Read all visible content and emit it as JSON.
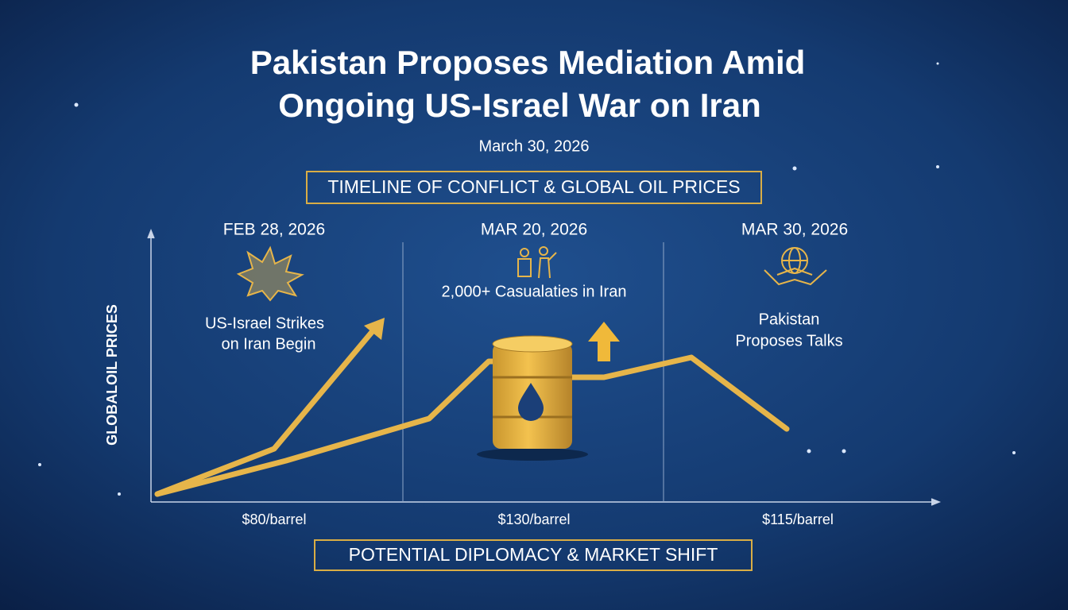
{
  "header": {
    "title_lines": [
      "Pakistan Proposes Mediation Amid",
      "Ongoing US-Israel War on Iran"
    ],
    "date": "March 30, 2026"
  },
  "banner": "TIMELINE OF CONFLICT & GLOBAL OIL PRICES",
  "axis_label": "GLOBALOIL PRICES",
  "events": [
    {
      "date": "FEB 28, 2026",
      "label_lines": [
        "US-Israel Strikes",
        "on Iran Begin"
      ],
      "price": "$80/barrel"
    },
    {
      "date": "MAR 20, 2026",
      "label_lines": [
        "2,000+ Casualaties in Iran"
      ],
      "price": "$130/barrel"
    },
    {
      "date": "MAR 30, 2026",
      "label_lines": [
        "Pakistan",
        "Proposes Talks"
      ],
      "price": "$115/barrel"
    }
  ],
  "footer": "POTENTIAL DIPLOMACY & MARKET SHIFT"
}
